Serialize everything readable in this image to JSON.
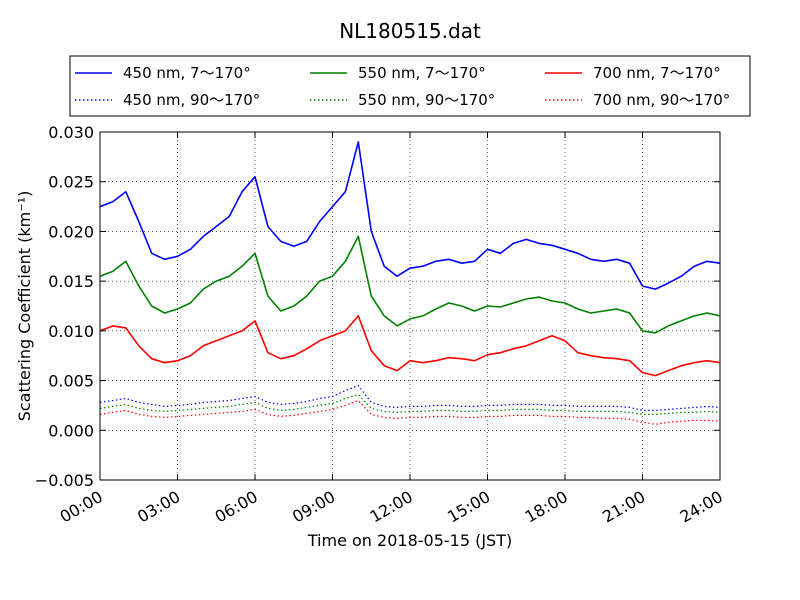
{
  "chart_data": {
    "type": "line",
    "title": "NL180515.dat",
    "xlabel": "Time on 2018-05-15 (JST)",
    "ylabel": "Scattering Coefficient (km⁻¹)",
    "xlim": [
      "00:00",
      "24:00"
    ],
    "ylim": [
      -0.005,
      0.03
    ],
    "grid": true,
    "legend_position": "top, above plot",
    "x_ticks": [
      "00:00",
      "03:00",
      "06:00",
      "09:00",
      "12:00",
      "15:00",
      "18:00",
      "21:00",
      "24:00"
    ],
    "y_ticks": [
      "−0.005",
      "0.000",
      "0.005",
      "0.010",
      "0.015",
      "0.020",
      "0.025",
      "0.030"
    ],
    "x": [
      "00:00",
      "00:30",
      "01:00",
      "01:30",
      "02:00",
      "02:30",
      "03:00",
      "03:30",
      "04:00",
      "04:30",
      "05:00",
      "05:30",
      "06:00",
      "06:30",
      "07:00",
      "07:30",
      "08:00",
      "08:30",
      "09:00",
      "09:30",
      "10:00",
      "10:30",
      "11:00",
      "11:30",
      "12:00",
      "12:30",
      "13:00",
      "13:30",
      "14:00",
      "14:30",
      "15:00",
      "15:30",
      "16:00",
      "16:30",
      "17:00",
      "17:30",
      "18:00",
      "18:30",
      "19:00",
      "19:30",
      "20:00",
      "20:30",
      "21:00",
      "21:30",
      "22:00",
      "22:30",
      "23:00",
      "23:30",
      "24:00"
    ],
    "series": [
      {
        "name": "450 nm, 7～170°",
        "color": "#0000ff",
        "style": "solid",
        "values": [
          0.0225,
          0.023,
          0.024,
          0.021,
          0.0178,
          0.0172,
          0.0175,
          0.0182,
          0.0195,
          0.0205,
          0.0215,
          0.024,
          0.0255,
          0.0205,
          0.019,
          0.0185,
          0.019,
          0.021,
          0.0225,
          0.024,
          0.029,
          0.02,
          0.0165,
          0.0155,
          0.0163,
          0.0165,
          0.017,
          0.0172,
          0.0168,
          0.017,
          0.0182,
          0.0178,
          0.0188,
          0.0192,
          0.0188,
          0.0186,
          0.0182,
          0.0178,
          0.0172,
          0.017,
          0.0172,
          0.0168,
          0.0145,
          0.0142,
          0.0148,
          0.0155,
          0.0165,
          0.017,
          0.0168
        ]
      },
      {
        "name": "550 nm, 7～170°",
        "color": "#008000",
        "style": "solid",
        "values": [
          0.0155,
          0.016,
          0.017,
          0.0145,
          0.0125,
          0.0118,
          0.0122,
          0.0128,
          0.0142,
          0.015,
          0.0155,
          0.0165,
          0.0178,
          0.0135,
          0.012,
          0.0125,
          0.0135,
          0.015,
          0.0155,
          0.017,
          0.0195,
          0.0135,
          0.0115,
          0.0105,
          0.0112,
          0.0115,
          0.0122,
          0.0128,
          0.0125,
          0.012,
          0.0125,
          0.0124,
          0.0128,
          0.0132,
          0.0134,
          0.013,
          0.0128,
          0.0122,
          0.0118,
          0.012,
          0.0122,
          0.0118,
          0.01,
          0.0098,
          0.0105,
          0.011,
          0.0115,
          0.0118,
          0.0115
        ]
      },
      {
        "name": "700 nm, 7～170°",
        "color": "#ff0000",
        "style": "solid",
        "values": [
          0.01,
          0.0105,
          0.0103,
          0.0085,
          0.0072,
          0.0068,
          0.007,
          0.0075,
          0.0085,
          0.009,
          0.0095,
          0.01,
          0.011,
          0.0078,
          0.0072,
          0.0075,
          0.0082,
          0.009,
          0.0095,
          0.01,
          0.0115,
          0.008,
          0.0065,
          0.006,
          0.007,
          0.0068,
          0.007,
          0.0073,
          0.0072,
          0.007,
          0.0076,
          0.0078,
          0.0082,
          0.0085,
          0.009,
          0.0095,
          0.009,
          0.0078,
          0.0075,
          0.0073,
          0.0072,
          0.007,
          0.0058,
          0.0055,
          0.006,
          0.0065,
          0.0068,
          0.007,
          0.0068
        ]
      },
      {
        "name": "450 nm, 90～170°",
        "color": "#0000ff",
        "style": "dotted",
        "values": [
          0.0028,
          0.003,
          0.0032,
          0.0028,
          0.0026,
          0.0024,
          0.0025,
          0.0026,
          0.0028,
          0.0029,
          0.003,
          0.0032,
          0.0034,
          0.0028,
          0.0026,
          0.0027,
          0.0029,
          0.0032,
          0.0034,
          0.004,
          0.0045,
          0.0028,
          0.0024,
          0.0023,
          0.0024,
          0.0024,
          0.0025,
          0.0025,
          0.0024,
          0.0024,
          0.0025,
          0.0025,
          0.0026,
          0.0026,
          0.0026,
          0.0025,
          0.0025,
          0.0024,
          0.0024,
          0.0024,
          0.0024,
          0.0023,
          0.002,
          0.002,
          0.0021,
          0.0022,
          0.0023,
          0.0024,
          0.0023
        ]
      },
      {
        "name": "550 nm, 90～170°",
        "color": "#008000",
        "style": "dotted",
        "values": [
          0.0022,
          0.0024,
          0.0026,
          0.0022,
          0.002,
          0.0019,
          0.002,
          0.0021,
          0.0022,
          0.0023,
          0.0024,
          0.0026,
          0.0028,
          0.0022,
          0.002,
          0.0021,
          0.0023,
          0.0025,
          0.0027,
          0.0032,
          0.0036,
          0.0022,
          0.0019,
          0.0018,
          0.0019,
          0.0019,
          0.002,
          0.002,
          0.0019,
          0.0019,
          0.002,
          0.002,
          0.0021,
          0.0021,
          0.0021,
          0.002,
          0.002,
          0.0019,
          0.0019,
          0.0019,
          0.0019,
          0.0018,
          0.0016,
          0.0016,
          0.0017,
          0.0018,
          0.0018,
          0.0019,
          0.0018
        ]
      },
      {
        "name": "700 nm, 90～170°",
        "color": "#ff0000",
        "style": "dotted",
        "values": [
          0.0016,
          0.0018,
          0.002,
          0.0016,
          0.0014,
          0.0013,
          0.0014,
          0.0015,
          0.0016,
          0.0017,
          0.0018,
          0.0019,
          0.0021,
          0.0016,
          0.0014,
          0.0015,
          0.0017,
          0.0019,
          0.0021,
          0.0025,
          0.003,
          0.0016,
          0.0013,
          0.0012,
          0.0013,
          0.0013,
          0.0014,
          0.0014,
          0.0013,
          0.0013,
          0.0014,
          0.0014,
          0.0015,
          0.0015,
          0.0015,
          0.0014,
          0.0014,
          0.0013,
          0.0013,
          0.0012,
          0.0012,
          0.0011,
          0.0008,
          0.0006,
          0.0008,
          0.0009,
          0.001,
          0.001,
          0.0009
        ]
      }
    ]
  }
}
